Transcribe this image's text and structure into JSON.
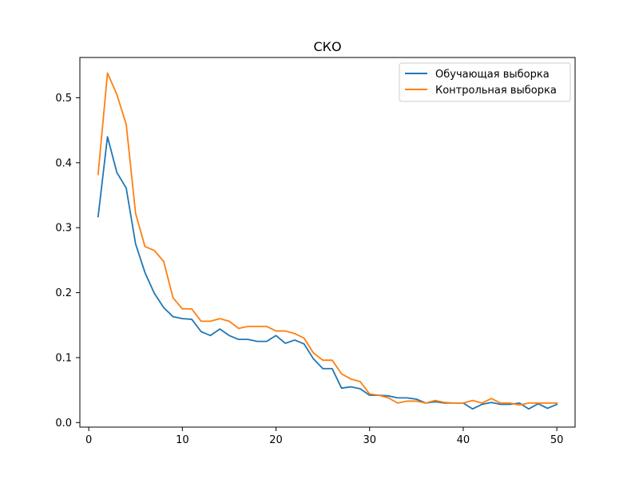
{
  "chart_data": {
    "type": "line",
    "title": "СКО",
    "xlabel": "",
    "ylabel": "",
    "xlim": [
      -0.95,
      51.95
    ],
    "ylim": [
      -0.007,
      0.562
    ],
    "xticks": [
      0,
      10,
      20,
      30,
      40,
      50
    ],
    "yticks": [
      0.0,
      0.1,
      0.2,
      0.3,
      0.4,
      0.5
    ],
    "xtick_labels": [
      "0",
      "10",
      "20",
      "30",
      "40",
      "50"
    ],
    "ytick_labels": [
      "0.0",
      "0.1",
      "0.2",
      "0.3",
      "0.4",
      "0.5"
    ],
    "grid": false,
    "legend_position": "top-right",
    "x": [
      1,
      2,
      3,
      4,
      5,
      6,
      7,
      8,
      9,
      10,
      11,
      12,
      13,
      14,
      15,
      16,
      17,
      18,
      19,
      20,
      21,
      22,
      23,
      24,
      25,
      26,
      27,
      28,
      29,
      30,
      31,
      32,
      33,
      34,
      35,
      36,
      37,
      38,
      39,
      40,
      41,
      42,
      43,
      44,
      45,
      46,
      47,
      48,
      49,
      50
    ],
    "series": [
      {
        "name": "Обучающая выборка",
        "color": "#1f77b4",
        "values": [
          0.317,
          0.44,
          0.385,
          0.361,
          0.275,
          0.231,
          0.199,
          0.177,
          0.163,
          0.16,
          0.159,
          0.14,
          0.134,
          0.144,
          0.134,
          0.128,
          0.128,
          0.125,
          0.125,
          0.134,
          0.122,
          0.127,
          0.121,
          0.098,
          0.083,
          0.083,
          0.053,
          0.055,
          0.052,
          0.042,
          0.042,
          0.041,
          0.038,
          0.038,
          0.036,
          0.03,
          0.032,
          0.03,
          0.03,
          0.03,
          0.021,
          0.028,
          0.031,
          0.028,
          0.028,
          0.03,
          0.021,
          0.029,
          0.022,
          0.028
        ]
      },
      {
        "name": "Контрольная выборка",
        "color": "#ff7f0e",
        "values": [
          0.382,
          0.538,
          0.505,
          0.459,
          0.322,
          0.271,
          0.265,
          0.248,
          0.192,
          0.175,
          0.175,
          0.156,
          0.156,
          0.16,
          0.156,
          0.145,
          0.148,
          0.148,
          0.148,
          0.141,
          0.141,
          0.137,
          0.13,
          0.107,
          0.096,
          0.096,
          0.075,
          0.067,
          0.063,
          0.044,
          0.042,
          0.038,
          0.03,
          0.033,
          0.033,
          0.03,
          0.034,
          0.031,
          0.03,
          0.03,
          0.034,
          0.03,
          0.037,
          0.03,
          0.03,
          0.027,
          0.03,
          0.03,
          0.03,
          0.03
        ]
      }
    ]
  }
}
